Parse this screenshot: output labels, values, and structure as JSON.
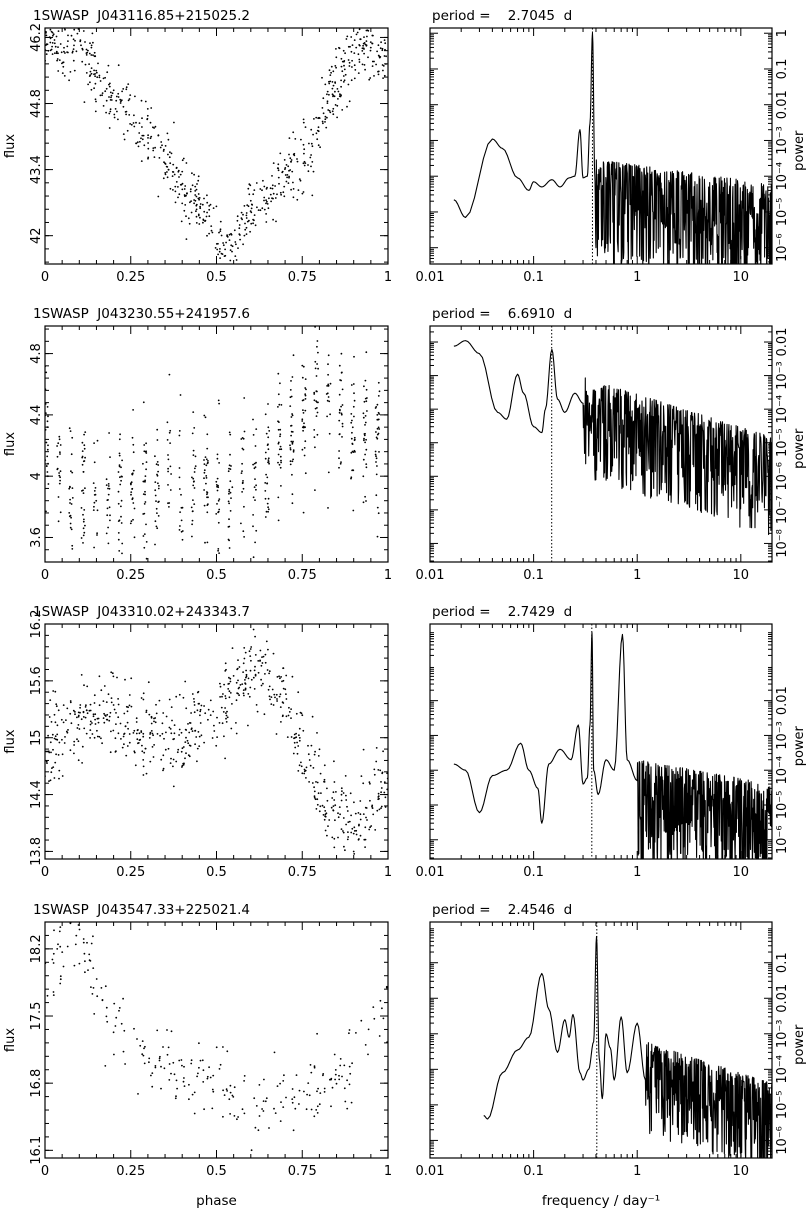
{
  "chart_data": [
    {
      "type": "scatter",
      "panel": "lightcurve",
      "title": "1SWASP  J043116.85+215025.2",
      "xlabel": "",
      "ylabel": "flux",
      "xlim": [
        0,
        1
      ],
      "ylim": [
        41.4,
        46.4
      ],
      "xticks": [
        0,
        0.25,
        0.5,
        0.75,
        1
      ],
      "xtick_labels": [
        "0",
        "0.25",
        "0.5",
        "0.75",
        "1"
      ],
      "yticks": [
        42,
        43.4,
        44.8,
        46.2
      ],
      "ytick_labels": [
        "42",
        "43.4",
        "44.8",
        "46.2"
      ],
      "trend": [
        [
          0,
          46.0
        ],
        [
          0.1,
          46.0
        ],
        [
          0.2,
          44.8
        ],
        [
          0.3,
          44.1
        ],
        [
          0.4,
          43.1
        ],
        [
          0.5,
          42.0
        ],
        [
          0.55,
          41.7
        ],
        [
          0.6,
          42.6
        ],
        [
          0.7,
          43.3
        ],
        [
          0.78,
          44.0
        ],
        [
          0.85,
          45.4
        ],
        [
          0.92,
          45.9
        ],
        [
          1,
          45.7
        ]
      ],
      "scatter_sd": 0.35,
      "n_points": 750
    },
    {
      "type": "line",
      "panel": "periodogram",
      "title": "period =    2.7045  d",
      "xlabel": "",
      "ylabel": "power",
      "xscale": "log",
      "yscale": "log",
      "xlim": [
        0.01,
        20
      ],
      "ylim": [
        3.5e-07,
        1.4
      ],
      "xticks": [
        0.01,
        0.1,
        1,
        10
      ],
      "xtick_labels": [
        "0.01",
        "0.1",
        "1",
        "10"
      ],
      "yticks": [
        1e-06,
        1e-05,
        0.0001,
        0.001,
        0.01,
        0.1,
        1
      ],
      "ytick_labels": [
        "10⁻⁶",
        "10⁻⁵",
        "10⁻⁴",
        "10⁻³",
        "0.01",
        "0.1",
        "1"
      ],
      "marked_frequency": 0.3698,
      "smooth_points": [
        [
          0.017,
          2.2e-05
        ],
        [
          0.022,
          7e-06
        ],
        [
          0.04,
          0.0011
        ],
        [
          0.05,
          0.0006
        ],
        [
          0.07,
          9e-05
        ],
        [
          0.09,
          4e-05
        ],
        [
          0.1,
          7e-05
        ],
        [
          0.12,
          5e-05
        ],
        [
          0.15,
          8e-05
        ],
        [
          0.18,
          5e-05
        ],
        [
          0.22,
          9e-05
        ],
        [
          0.25,
          0.0001
        ],
        [
          0.28,
          0.002
        ],
        [
          0.3,
          9e-05
        ],
        [
          0.33,
          0.0001
        ],
        [
          0.35,
          0.003
        ],
        [
          0.37,
          1.0
        ],
        [
          0.39,
          0.0001
        ],
        [
          0.4,
          1e-06
        ]
      ],
      "noise": {
        "start": 0.4,
        "end": 20,
        "peak_start": 0.0003,
        "peak_end": 6e-05,
        "depth": 3.2,
        "n": 500
      }
    },
    {
      "type": "scatter",
      "panel": "lightcurve",
      "title": "1SWASP  J043230.55+241957.6",
      "xlabel": "",
      "ylabel": "flux",
      "xlim": [
        0,
        1
      ],
      "ylim": [
        3.44,
        4.98
      ],
      "xticks": [
        0,
        0.25,
        0.5,
        0.75,
        1
      ],
      "xtick_labels": [
        "0",
        "0.25",
        "0.5",
        "0.75",
        "1"
      ],
      "yticks": [
        3.6,
        4,
        4.4,
        4.8
      ],
      "ytick_labels": [
        "3.6",
        "4",
        "4.4",
        "4.8"
      ],
      "trend": [
        [
          0,
          4.3
        ],
        [
          0.05,
          4.0
        ],
        [
          0.15,
          3.85
        ],
        [
          0.25,
          3.9
        ],
        [
          0.35,
          4.0
        ],
        [
          0.45,
          3.95
        ],
        [
          0.55,
          3.85
        ],
        [
          0.65,
          4.1
        ],
        [
          0.72,
          4.3
        ],
        [
          0.8,
          4.55
        ],
        [
          0.9,
          4.3
        ],
        [
          1,
          4.1
        ]
      ],
      "scatter_sd": 0.22,
      "n_points": 700
    },
    {
      "type": "line",
      "panel": "periodogram",
      "title": "period =    6.6910  d",
      "xlabel": "",
      "ylabel": "power",
      "xscale": "log",
      "yscale": "log",
      "xlim": [
        0.01,
        20
      ],
      "ylim": [
        2.8e-09,
        0.03
      ],
      "xticks": [
        0.01,
        0.1,
        1,
        10
      ],
      "xtick_labels": [
        "0.01",
        "0.1",
        "1",
        "10"
      ],
      "yticks": [
        1e-08,
        1e-07,
        1e-06,
        1e-05,
        0.0001,
        0.001,
        0.01
      ],
      "ytick_labels": [
        "10⁻⁸",
        "10⁻⁷",
        "10⁻⁶",
        "10⁻⁵",
        "10⁻⁴",
        "10⁻³",
        "0.01"
      ],
      "marked_frequency": 0.1495,
      "smooth_points": [
        [
          0.017,
          0.0075
        ],
        [
          0.022,
          0.011
        ],
        [
          0.03,
          0.0045
        ],
        [
          0.045,
          8e-05
        ],
        [
          0.055,
          5e-05
        ],
        [
          0.07,
          0.0011
        ],
        [
          0.08,
          0.0003
        ],
        [
          0.1,
          3e-05
        ],
        [
          0.12,
          2e-05
        ],
        [
          0.13,
          0.0001
        ],
        [
          0.15,
          0.006
        ],
        [
          0.17,
          0.0002
        ],
        [
          0.2,
          8e-05
        ],
        [
          0.25,
          0.0003
        ],
        [
          0.3,
          0.00015
        ]
      ],
      "noise": {
        "start": 0.3,
        "end": 20,
        "peak_start": 0.0009,
        "peak_end": 1.5e-05,
        "depth": 3.0,
        "n": 500
      }
    },
    {
      "type": "scatter",
      "panel": "lightcurve",
      "title": "1SWASP  J043310.02+243343.7",
      "xlabel": "",
      "ylabel": "flux",
      "xlim": [
        0,
        1
      ],
      "ylim": [
        13.72,
        16.2
      ],
      "xticks": [
        0,
        0.25,
        0.5,
        0.75,
        1
      ],
      "xtick_labels": [
        "0",
        "0.25",
        "0.5",
        "0.75",
        "1"
      ],
      "yticks": [
        13.8,
        14.4,
        15,
        15.6,
        16.2
      ],
      "ytick_labels": [
        "13.8",
        "14.4",
        "15",
        "15.6",
        "16.2"
      ],
      "trend": [
        [
          0,
          14.8
        ],
        [
          0.1,
          15.2
        ],
        [
          0.2,
          15.3
        ],
        [
          0.3,
          15.0
        ],
        [
          0.4,
          15.0
        ],
        [
          0.5,
          15.3
        ],
        [
          0.6,
          15.7
        ],
        [
          0.68,
          15.5
        ],
        [
          0.75,
          14.8
        ],
        [
          0.82,
          14.3
        ],
        [
          0.9,
          14.0
        ],
        [
          1,
          14.6
        ]
      ],
      "scatter_sd": 0.22,
      "n_points": 700
    },
    {
      "type": "line",
      "panel": "periodogram",
      "title": "period =    2.7429  d",
      "xlabel": "",
      "ylabel": "power",
      "xscale": "log",
      "yscale": "log",
      "xlim": [
        0.01,
        20
      ],
      "ylim": [
        2.8e-07,
        1.6
      ],
      "xticks": [
        0.01,
        0.1,
        1,
        10
      ],
      "xtick_labels": [
        "0.01",
        "0.1",
        "1",
        "10"
      ],
      "yticks": [
        1e-06,
        1e-05,
        0.0001,
        0.001,
        0.01
      ],
      "ytick_labels": [
        "10⁻⁶",
        "10⁻⁵",
        "10⁻⁴",
        "10⁻³",
        "0.01"
      ],
      "marked_frequency": 0.3646,
      "smooth_points": [
        [
          0.017,
          0.00015
        ],
        [
          0.022,
          0.0001
        ],
        [
          0.03,
          6e-06
        ],
        [
          0.04,
          7e-05
        ],
        [
          0.055,
          0.0001
        ],
        [
          0.075,
          0.0006
        ],
        [
          0.09,
          0.0001
        ],
        [
          0.11,
          3e-05
        ],
        [
          0.12,
          3e-06
        ],
        [
          0.14,
          0.00015
        ],
        [
          0.18,
          0.0004
        ],
        [
          0.23,
          0.0002
        ],
        [
          0.27,
          0.002
        ],
        [
          0.3,
          4e-05
        ],
        [
          0.33,
          6e-05
        ],
        [
          0.35,
          0.002
        ],
        [
          0.366,
          0.9
        ],
        [
          0.38,
          0.0001
        ],
        [
          0.42,
          2e-05
        ],
        [
          0.5,
          0.0002
        ],
        [
          0.6,
          0.0001
        ],
        [
          0.72,
          0.8
        ],
        [
          0.8,
          0.0002
        ],
        [
          1.0,
          5e-05
        ]
      ],
      "noise": {
        "start": 1.0,
        "end": 20,
        "peak_start": 0.0002,
        "peak_end": 4e-05,
        "depth": 3.0,
        "n": 420
      }
    },
    {
      "type": "scatter",
      "panel": "lightcurve",
      "title": "1SWASP  J043547.33+225021.4",
      "xlabel": "phase",
      "ylabel": "flux",
      "xlim": [
        0,
        1
      ],
      "ylim": [
        16.02,
        18.48
      ],
      "xticks": [
        0,
        0.25,
        0.5,
        0.75,
        1
      ],
      "xtick_labels": [
        "0",
        "0.25",
        "0.5",
        "0.75",
        "1"
      ],
      "yticks": [
        16.1,
        16.8,
        17.5,
        18.2
      ],
      "ytick_labels": [
        "16.1",
        "16.8",
        "17.5",
        "18.2"
      ],
      "trend": [
        [
          0,
          18.0
        ],
        [
          0.08,
          18.4
        ],
        [
          0.17,
          17.6
        ],
        [
          0.25,
          17.2
        ],
        [
          0.4,
          16.8
        ],
        [
          0.5,
          16.85
        ],
        [
          0.6,
          16.5
        ],
        [
          0.7,
          16.7
        ],
        [
          0.8,
          16.8
        ],
        [
          0.88,
          16.9
        ],
        [
          0.93,
          17.2
        ],
        [
          1,
          17.7
        ]
      ],
      "scatter_sd": 0.2,
      "n_points": 260
    },
    {
      "type": "line",
      "panel": "periodogram",
      "title": "period =    2.4546  d",
      "xlabel": "frequency / day⁻¹",
      "ylabel": "power",
      "xscale": "log",
      "yscale": "log",
      "xlim": [
        0.01,
        20
      ],
      "ylim": [
        3.2e-07,
        1.4
      ],
      "xticks": [
        0.01,
        0.1,
        1,
        10
      ],
      "xtick_labels": [
        "0.01",
        "0.1",
        "1",
        "10"
      ],
      "yticks": [
        1e-06,
        1e-05,
        0.0001,
        0.001,
        0.01,
        0.1
      ],
      "ytick_labels": [
        "10⁻⁶",
        "10⁻⁵",
        "10⁻⁴",
        "10⁻³",
        "0.01",
        "0.1"
      ],
      "marked_frequency": 0.4074,
      "smooth_points": [
        [
          0.033,
          5e-06
        ],
        [
          0.036,
          4e-06
        ],
        [
          0.05,
          8e-05
        ],
        [
          0.07,
          0.00035
        ],
        [
          0.09,
          0.0008
        ],
        [
          0.12,
          0.05
        ],
        [
          0.14,
          0.005
        ],
        [
          0.17,
          0.0003
        ],
        [
          0.2,
          0.0025
        ],
        [
          0.22,
          0.0008
        ],
        [
          0.24,
          0.0035
        ],
        [
          0.28,
          8e-05
        ],
        [
          0.3,
          5e-05
        ],
        [
          0.34,
          0.0001
        ],
        [
          0.38,
          0.0006
        ],
        [
          0.405,
          0.55
        ],
        [
          0.43,
          0.0002
        ],
        [
          0.46,
          1.5e-05
        ],
        [
          0.5,
          0.001
        ],
        [
          0.55,
          0.0004
        ],
        [
          0.6,
          5e-05
        ],
        [
          0.7,
          0.003
        ],
        [
          0.8,
          8e-05
        ],
        [
          1.0,
          0.002
        ],
        [
          1.2,
          5e-05
        ]
      ],
      "noise": {
        "start": 1.2,
        "end": 20,
        "peak_start": 0.0006,
        "peak_end": 4e-05,
        "depth": 2.6,
        "n": 380
      }
    }
  ]
}
